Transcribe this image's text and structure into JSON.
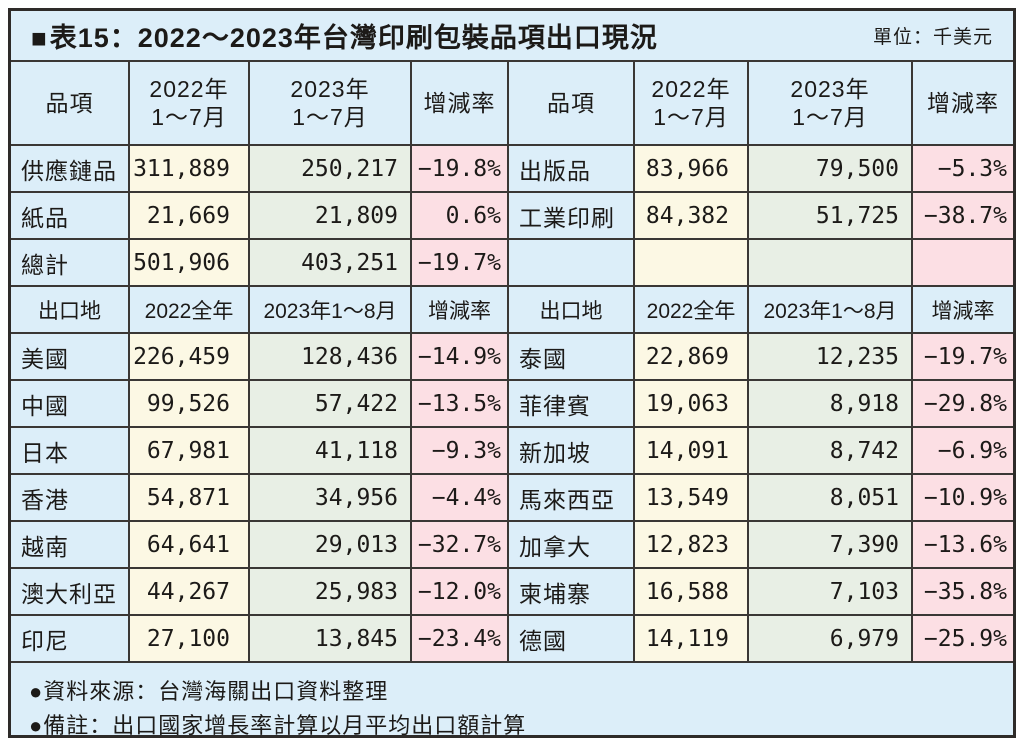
{
  "title": {
    "marker": "■",
    "text": "表15：2022〜2023年台灣印刷包裝品項出口現況",
    "unit": "單位：千美元"
  },
  "colors": {
    "panel_bg": "#dceef9",
    "col_2022_bg": "#fcf8e4",
    "col_2023_bg": "#e8efe5",
    "col_rate_bg": "#fcdfe4",
    "border": "#3a3735"
  },
  "table": {
    "item_header": [
      {
        "l1": "品項",
        "l2": ""
      },
      {
        "l1": "2022年",
        "l2": "1〜7月"
      },
      {
        "l1": "2023年",
        "l2": "1〜7月"
      },
      {
        "l1": "增減率",
        "l2": ""
      },
      {
        "l1": "品項",
        "l2": ""
      },
      {
        "l1": "2022年",
        "l2": "1〜7月"
      },
      {
        "l1": "2023年",
        "l2": "1〜7月"
      },
      {
        "l1": "增減率",
        "l2": ""
      }
    ],
    "item_rows": [
      [
        "供應鏈品",
        "311,889",
        "250,217",
        "−19.8%",
        "出版品",
        "83,966",
        "79,500",
        "−5.3%"
      ],
      [
        "紙品",
        "21,669",
        "21,809",
        "0.6%",
        "工業印刷",
        "84,382",
        "51,725",
        "−38.7%"
      ],
      [
        "總計",
        "501,906",
        "403,251",
        "−19.7%",
        "",
        "",
        "",
        ""
      ]
    ],
    "region_header": [
      "出口地",
      "2022全年",
      "2023年1〜8月",
      "增減率",
      "出口地",
      "2022全年",
      "2023年1〜8月",
      "增減率"
    ],
    "region_rows": [
      [
        "美國",
        "226,459",
        "128,436",
        "−14.9%",
        "泰國",
        "22,869",
        "12,235",
        "−19.7%"
      ],
      [
        "中國",
        "99,526",
        "57,422",
        "−13.5%",
        "菲律賓",
        "19,063",
        "8,918",
        "−29.8%"
      ],
      [
        "日本",
        "67,981",
        "41,118",
        "−9.3%",
        "新加坡",
        "14,091",
        "8,742",
        "−6.9%"
      ],
      [
        "香港",
        "54,871",
        "34,956",
        "−4.4%",
        "馬來西亞",
        "13,549",
        "8,051",
        "−10.9%"
      ],
      [
        "越南",
        "64,641",
        "29,013",
        "−32.7%",
        "加拿大",
        "12,823",
        "7,390",
        "−13.6%"
      ],
      [
        "澳大利亞",
        "44,267",
        "25,983",
        "−12.0%",
        "柬埔寨",
        "16,588",
        "7,103",
        "−35.8%"
      ],
      [
        "印尼",
        "27,100",
        "13,845",
        "−23.4%",
        "德國",
        "14,119",
        "6,979",
        "−25.9%"
      ]
    ]
  },
  "footer": {
    "notes": [
      "●資料來源：台灣海關出口資料整理",
      "●備註：出口國家增長率計算以月平均出口額計算"
    ]
  }
}
